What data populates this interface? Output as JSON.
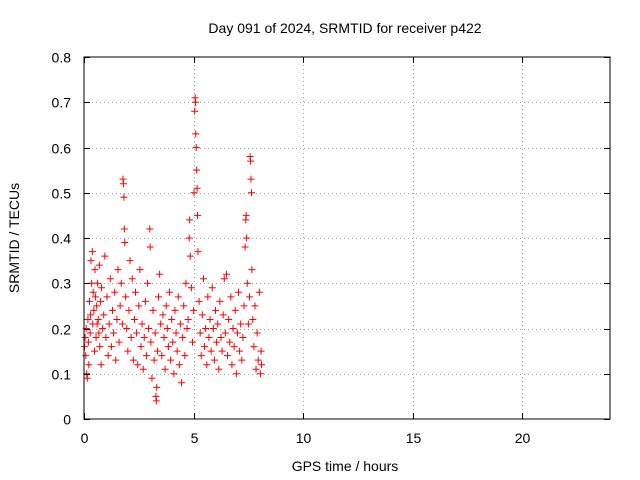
{
  "chart_data": {
    "type": "scatter",
    "title": "Day 091 of 2024, SRMTID for receiver p422",
    "xlabel": "GPS time / hours",
    "ylabel": "SRMTID / TECUs",
    "xlim": [
      0,
      24
    ],
    "ylim": [
      0,
      0.8
    ],
    "xticks": [
      0,
      5,
      10,
      15,
      20
    ],
    "xtick_labels": [
      "0",
      "5",
      "10",
      "15",
      "20"
    ],
    "yticks": [
      0,
      0.1,
      0.2,
      0.3,
      0.4,
      0.5,
      0.6,
      0.7,
      0.8
    ],
    "ytick_labels": [
      "0",
      "0.1",
      "0.2",
      "0.3",
      "0.4",
      "0.5",
      "0.6",
      "0.7",
      "0.8"
    ],
    "grid": true,
    "marker": "plus",
    "color": "#ff0000",
    "series": [
      {
        "name": "p422",
        "points": [
          [
            0.02,
            0.16
          ],
          [
            0.05,
            0.18
          ],
          [
            0.08,
            0.14
          ],
          [
            0.1,
            0.2
          ],
          [
            0.12,
            0.1
          ],
          [
            0.15,
            0.09
          ],
          [
            0.18,
            0.22
          ],
          [
            0.2,
            0.17
          ],
          [
            0.22,
            0.12
          ],
          [
            0.25,
            0.26
          ],
          [
            0.28,
            0.19
          ],
          [
            0.3,
            0.23
          ],
          [
            0.32,
            0.35
          ],
          [
            0.35,
            0.3
          ],
          [
            0.38,
            0.37
          ],
          [
            0.4,
            0.21
          ],
          [
            0.42,
            0.28
          ],
          [
            0.45,
            0.24
          ],
          [
            0.48,
            0.15
          ],
          [
            0.5,
            0.33
          ],
          [
            0.52,
            0.27
          ],
          [
            0.55,
            0.18
          ],
          [
            0.58,
            0.25
          ],
          [
            0.6,
            0.21
          ],
          [
            0.62,
            0.3
          ],
          [
            0.65,
            0.22
          ],
          [
            0.68,
            0.19
          ],
          [
            0.7,
            0.34
          ],
          [
            0.72,
            0.16
          ],
          [
            0.75,
            0.26
          ],
          [
            0.78,
            0.12
          ],
          [
            0.8,
            0.29
          ],
          [
            0.85,
            0.2
          ],
          [
            0.9,
            0.23
          ],
          [
            0.95,
            0.36
          ],
          [
            1.0,
            0.18
          ],
          [
            1.05,
            0.27
          ],
          [
            1.1,
            0.14
          ],
          [
            1.15,
            0.21
          ],
          [
            1.2,
            0.31
          ],
          [
            1.25,
            0.16
          ],
          [
            1.3,
            0.24
          ],
          [
            1.35,
            0.19
          ],
          [
            1.4,
            0.28
          ],
          [
            1.45,
            0.13
          ],
          [
            1.5,
            0.22
          ],
          [
            1.55,
            0.33
          ],
          [
            1.6,
            0.17
          ],
          [
            1.65,
            0.25
          ],
          [
            1.7,
            0.3
          ],
          [
            1.75,
            0.21
          ],
          [
            1.78,
            0.53
          ],
          [
            1.8,
            0.52
          ],
          [
            1.82,
            0.49
          ],
          [
            1.84,
            0.42
          ],
          [
            1.86,
            0.39
          ],
          [
            1.9,
            0.27
          ],
          [
            1.95,
            0.2
          ],
          [
            2.0,
            0.15
          ],
          [
            2.05,
            0.24
          ],
          [
            2.1,
            0.35
          ],
          [
            2.15,
            0.18
          ],
          [
            2.2,
            0.31
          ],
          [
            2.25,
            0.13
          ],
          [
            2.3,
            0.22
          ],
          [
            2.35,
            0.28
          ],
          [
            2.4,
            0.19
          ],
          [
            2.45,
            0.12
          ],
          [
            2.5,
            0.25
          ],
          [
            2.55,
            0.33
          ],
          [
            2.6,
            0.16
          ],
          [
            2.65,
            0.21
          ],
          [
            2.7,
            0.11
          ],
          [
            2.75,
            0.18
          ],
          [
            2.8,
            0.26
          ],
          [
            2.85,
            0.14
          ],
          [
            2.9,
            0.3
          ],
          [
            2.95,
            0.2
          ],
          [
            3.0,
            0.42
          ],
          [
            3.02,
            0.38
          ],
          [
            3.05,
            0.17
          ],
          [
            3.1,
            0.09
          ],
          [
            3.15,
            0.24
          ],
          [
            3.2,
            0.13
          ],
          [
            3.25,
            0.19
          ],
          [
            3.28,
            0.05
          ],
          [
            3.3,
            0.04
          ],
          [
            3.32,
            0.07
          ],
          [
            3.35,
            0.15
          ],
          [
            3.4,
            0.27
          ],
          [
            3.45,
            0.32
          ],
          [
            3.5,
            0.21
          ],
          [
            3.55,
            0.14
          ],
          [
            3.6,
            0.23
          ],
          [
            3.65,
            0.18
          ],
          [
            3.7,
            0.11
          ],
          [
            3.75,
            0.25
          ],
          [
            3.8,
            0.2
          ],
          [
            3.85,
            0.16
          ],
          [
            3.9,
            0.28
          ],
          [
            3.95,
            0.13
          ],
          [
            4.0,
            0.22
          ],
          [
            4.05,
            0.17
          ],
          [
            4.1,
            0.1
          ],
          [
            4.15,
            0.24
          ],
          [
            4.2,
            0.19
          ],
          [
            4.25,
            0.15
          ],
          [
            4.3,
            0.27
          ],
          [
            4.35,
            0.12
          ],
          [
            4.4,
            0.21
          ],
          [
            4.45,
            0.08
          ],
          [
            4.5,
            0.18
          ],
          [
            4.55,
            0.25
          ],
          [
            4.6,
            0.14
          ],
          [
            4.65,
            0.3
          ],
          [
            4.7,
            0.2
          ],
          [
            4.75,
            0.22
          ],
          [
            4.8,
            0.4
          ],
          [
            4.82,
            0.44
          ],
          [
            4.85,
            0.36
          ],
          [
            4.9,
            0.29
          ],
          [
            4.95,
            0.17
          ],
          [
            5.0,
            0.24
          ],
          [
            5.02,
            0.5
          ],
          [
            5.05,
            0.68
          ],
          [
            5.07,
            0.71
          ],
          [
            5.09,
            0.7
          ],
          [
            5.1,
            0.63
          ],
          [
            5.12,
            0.6
          ],
          [
            5.14,
            0.55
          ],
          [
            5.16,
            0.51
          ],
          [
            5.18,
            0.45
          ],
          [
            5.2,
            0.37
          ],
          [
            5.25,
            0.26
          ],
          [
            5.3,
            0.19
          ],
          [
            5.35,
            0.14
          ],
          [
            5.4,
            0.23
          ],
          [
            5.45,
            0.31
          ],
          [
            5.5,
            0.16
          ],
          [
            5.55,
            0.2
          ],
          [
            5.6,
            0.12
          ],
          [
            5.65,
            0.27
          ],
          [
            5.7,
            0.18
          ],
          [
            5.75,
            0.22
          ],
          [
            5.8,
            0.15
          ],
          [
            5.85,
            0.29
          ],
          [
            5.9,
            0.2
          ],
          [
            5.95,
            0.13
          ],
          [
            6.0,
            0.24
          ],
          [
            6.05,
            0.17
          ],
          [
            6.1,
            0.21
          ],
          [
            6.15,
            0.11
          ],
          [
            6.2,
            0.26
          ],
          [
            6.25,
            0.18
          ],
          [
            6.3,
            0.15
          ],
          [
            6.35,
            0.23
          ],
          [
            6.4,
            0.31
          ],
          [
            6.45,
            0.19
          ],
          [
            6.5,
            0.32
          ],
          [
            6.55,
            0.14
          ],
          [
            6.6,
            0.22
          ],
          [
            6.65,
            0.17
          ],
          [
            6.7,
            0.27
          ],
          [
            6.75,
            0.12
          ],
          [
            6.8,
            0.2
          ],
          [
            6.85,
            0.16
          ],
          [
            6.9,
            0.24
          ],
          [
            6.95,
            0.1
          ],
          [
            7.0,
            0.19
          ],
          [
            7.05,
            0.28
          ],
          [
            7.1,
            0.15
          ],
          [
            7.15,
            0.21
          ],
          [
            7.2,
            0.13
          ],
          [
            7.25,
            0.18
          ],
          [
            7.3,
            0.25
          ],
          [
            7.35,
            0.38
          ],
          [
            7.38,
            0.44
          ],
          [
            7.4,
            0.45
          ],
          [
            7.42,
            0.4
          ],
          [
            7.45,
            0.3
          ],
          [
            7.5,
            0.21
          ],
          [
            7.55,
            0.27
          ],
          [
            7.58,
            0.58
          ],
          [
            7.6,
            0.57
          ],
          [
            7.62,
            0.53
          ],
          [
            7.64,
            0.5
          ],
          [
            7.66,
            0.33
          ],
          [
            7.7,
            0.22
          ],
          [
            7.75,
            0.16
          ],
          [
            7.8,
            0.25
          ],
          [
            7.85,
            0.11
          ],
          [
            7.9,
            0.19
          ],
          [
            7.95,
            0.13
          ],
          [
            8.0,
            0.28
          ],
          [
            8.05,
            0.1
          ],
          [
            8.08,
            0.15
          ],
          [
            8.1,
            0.12
          ]
        ]
      }
    ]
  }
}
